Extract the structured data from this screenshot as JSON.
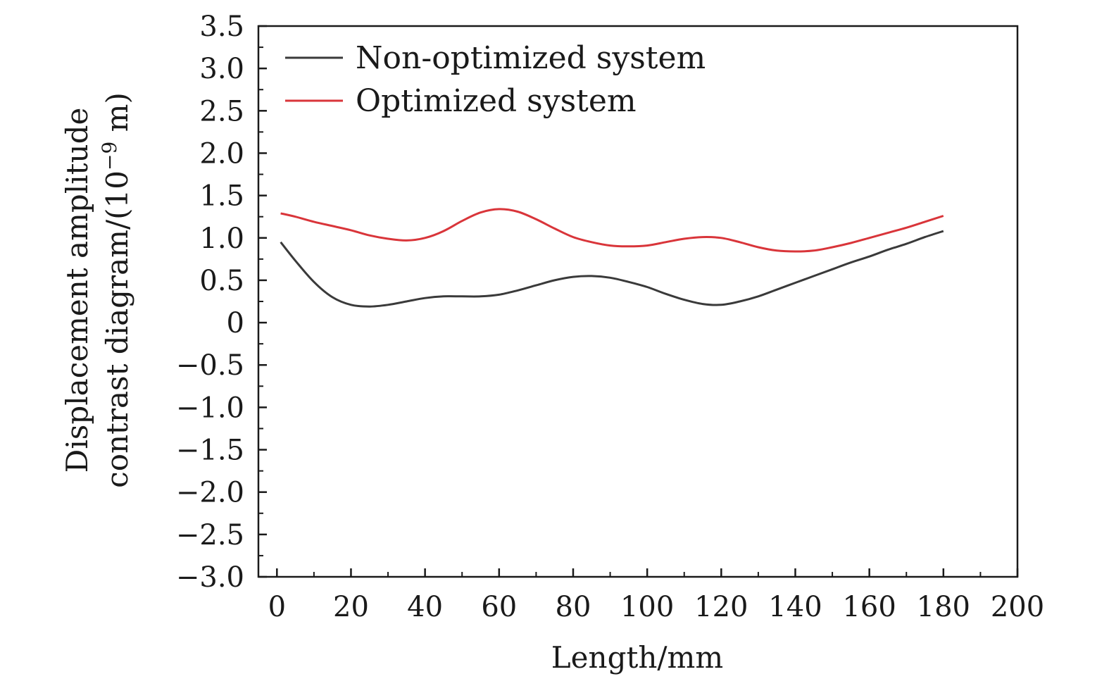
{
  "chart_data": {
    "type": "line",
    "title": "",
    "xlabel": "Length/mm",
    "ylabel_line1": "Displacement amplitude",
    "ylabel_line2": "contrast diagram/(10",
    "ylabel_exp": "−9",
    "ylabel_tail": " m)",
    "xlim": [
      -5,
      200
    ],
    "ylim": [
      -3.0,
      3.5
    ],
    "xticks": [
      0,
      20,
      40,
      60,
      80,
      100,
      120,
      140,
      160,
      180,
      200
    ],
    "xtick_labels": [
      "0",
      "20",
      "40",
      "60",
      "80",
      "100",
      "120",
      "140",
      "160",
      "180",
      "200"
    ],
    "yticks": [
      3.5,
      3.0,
      2.5,
      2.0,
      1.5,
      1.0,
      0.5,
      0,
      -0.5,
      -1.0,
      -1.5,
      -2.0,
      -2.5,
      -3.0
    ],
    "ytick_labels": [
      "3.5",
      "3.0",
      "2.5",
      "2.0",
      "1.5",
      "1.0",
      "0.5",
      "0",
      "−0.5",
      "−1.0",
      "−1.5",
      "−2.0",
      "−2.5",
      "−3.0"
    ],
    "grid": false,
    "legend_position": "top-left",
    "series": [
      {
        "name": "Non-optimized system",
        "color": "#3a3a3a",
        "x": [
          1,
          5,
          10,
          15,
          20,
          25,
          30,
          35,
          40,
          45,
          50,
          55,
          60,
          65,
          70,
          75,
          80,
          85,
          90,
          95,
          100,
          105,
          110,
          115,
          120,
          125,
          130,
          135,
          140,
          145,
          150,
          155,
          160,
          165,
          170,
          175,
          180
        ],
        "y": [
          0.95,
          0.73,
          0.48,
          0.3,
          0.21,
          0.19,
          0.21,
          0.25,
          0.29,
          0.31,
          0.31,
          0.31,
          0.33,
          0.38,
          0.44,
          0.5,
          0.54,
          0.55,
          0.53,
          0.48,
          0.42,
          0.34,
          0.27,
          0.22,
          0.21,
          0.25,
          0.31,
          0.39,
          0.47,
          0.55,
          0.63,
          0.71,
          0.78,
          0.86,
          0.93,
          1.01,
          1.08
        ]
      },
      {
        "name": "Optimized system",
        "color": "#d9353a",
        "x": [
          1,
          5,
          10,
          15,
          20,
          25,
          30,
          35,
          40,
          45,
          50,
          55,
          60,
          65,
          70,
          75,
          80,
          85,
          90,
          95,
          100,
          105,
          110,
          115,
          120,
          125,
          130,
          135,
          140,
          145,
          150,
          155,
          160,
          165,
          170,
          175,
          180
        ],
        "y": [
          1.29,
          1.25,
          1.19,
          1.14,
          1.09,
          1.03,
          0.99,
          0.97,
          1.0,
          1.08,
          1.2,
          1.3,
          1.34,
          1.31,
          1.22,
          1.11,
          1.01,
          0.95,
          0.91,
          0.9,
          0.91,
          0.95,
          0.99,
          1.01,
          1.0,
          0.95,
          0.89,
          0.85,
          0.84,
          0.85,
          0.89,
          0.94,
          1.0,
          1.06,
          1.12,
          1.19,
          1.26
        ]
      }
    ]
  }
}
